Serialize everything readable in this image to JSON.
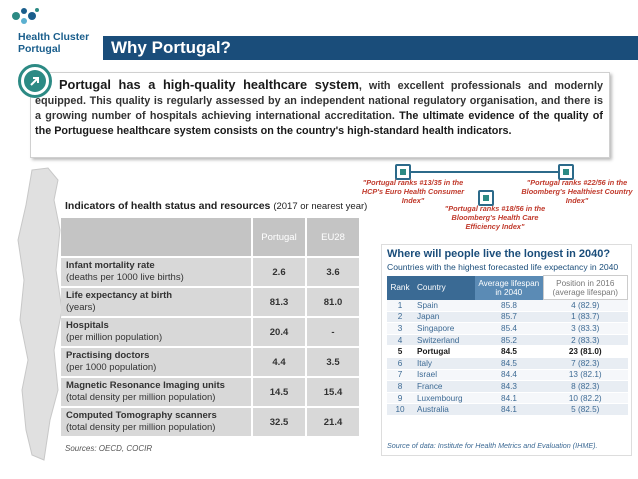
{
  "brand": {
    "name_line1": "Health Cluster",
    "name_line2": "Portugal",
    "color": "#1a5e8c"
  },
  "header": {
    "title": "Why Portugal?"
  },
  "intro": {
    "lead": "Portugal has a high-quality healthcare system",
    "text1": ", with excellent professionals and modernly equipped. This quality is regularly assessed by an independent national regulatory organisation, and there is a growing number of hospitals achieving international accreditation. ",
    "text2": "The ultimate evidence of the quality of the Portuguese healthcare system consists on the country's high-standard health indicators."
  },
  "rankings": [
    {
      "text": "\"Portugal ranks #13/35 in the HCP's Euro Health Consumer Index\""
    },
    {
      "text": "\"Portugal ranks #18/56 in the Bloomberg's Health Care Efficiency Index\""
    },
    {
      "text": "\"Portugal ranks #22/56 in the Bloomberg's Healthiest Country Index\""
    }
  ],
  "indicators": {
    "title": "Indicators of health status and resources",
    "title_note": "(2017 or nearest year)",
    "columns": [
      "Portugal",
      "EU28"
    ],
    "rows": [
      {
        "label": "Infant mortality rate",
        "sub": "(deaths per 1000 live births)",
        "portugal": "2.6",
        "eu28": "3.6"
      },
      {
        "label": "Life expectancy at birth",
        "sub": "(years)",
        "portugal": "81.3",
        "eu28": "81.0"
      },
      {
        "label": "Hospitals",
        "sub": "(per million population)",
        "portugal": "20.4",
        "eu28": "-"
      },
      {
        "label": "Practising doctors",
        "sub": "(per 1000 population)",
        "portugal": "4.4",
        "eu28": "3.5"
      },
      {
        "label": "Magnetic Resonance Imaging units",
        "sub": "(total density per million population)",
        "portugal": "14.5",
        "eu28": "15.4"
      },
      {
        "label": "Computed Tomography scanners",
        "sub": "(total density per million population)",
        "portugal": "32.5",
        "eu28": "21.4"
      }
    ],
    "sources": "Sources: OECD, COCIR"
  },
  "life": {
    "title": "Where will people live the longest in 2040?",
    "subtitle": "Countries with the highest forecasted life expectancy in 2040",
    "headers": {
      "rank": "Rank",
      "country": "Country",
      "avg1": "Average lifespan",
      "avg2": "in 2040",
      "pos1": "Position in 2016",
      "pos2": "(average lifespan)"
    },
    "rows": [
      {
        "rank": "1",
        "country": "Spain",
        "avg": "85.8",
        "pos": "4 (82.9)"
      },
      {
        "rank": "2",
        "country": "Japan",
        "avg": "85.7",
        "pos": "1 (83.7)"
      },
      {
        "rank": "3",
        "country": "Singapore",
        "avg": "85.4",
        "pos": "3 (83.3)"
      },
      {
        "rank": "4",
        "country": "Switzerland",
        "avg": "85.2",
        "pos": "2 (83.3)"
      },
      {
        "rank": "5",
        "country": "Portugal",
        "avg": "84.5",
        "pos": "23 (81.0)"
      },
      {
        "rank": "6",
        "country": "Italy",
        "avg": "84.5",
        "pos": "7 (82.3)"
      },
      {
        "rank": "7",
        "country": "Israel",
        "avg": "84.4",
        "pos": "13 (82.1)"
      },
      {
        "rank": "8",
        "country": "France",
        "avg": "84.3",
        "pos": "8 (82.3)"
      },
      {
        "rank": "9",
        "country": "Luxembourg",
        "avg": "84.1",
        "pos": "10 (82.2)"
      },
      {
        "rank": "10",
        "country": "Australia",
        "avg": "84.1",
        "pos": "5 (82.5)"
      }
    ],
    "source": "Source of data: Institute for Health Metrics and Evaluation (IHME)."
  }
}
